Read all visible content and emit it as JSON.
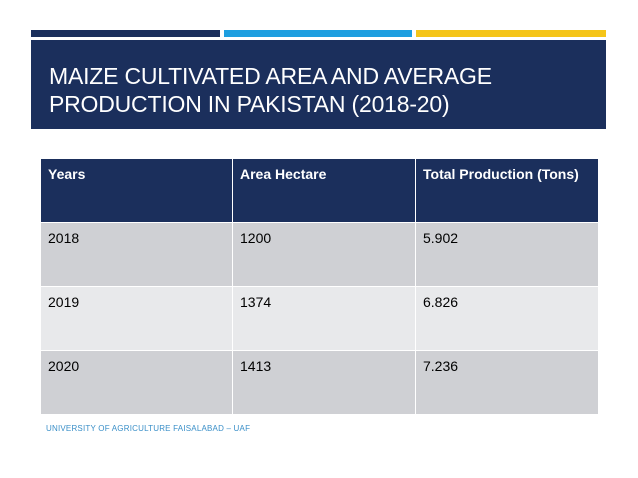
{
  "slide": {
    "title": "MAIZE CULTIVATED AREA AND AVERAGE PRODUCTION IN PAKISTAN (2018-20)",
    "footer": "UNIVERSITY OF AGRICULTURE FAISALABAD – UAF"
  },
  "table": {
    "headers": [
      "Years",
      "Area Hectare",
      "Total Production (Tons)"
    ],
    "rows": [
      [
        "2018",
        "1200",
        "5.902"
      ],
      [
        "2019",
        "1374",
        "6.826"
      ],
      [
        "2020",
        "1413",
        "7.236"
      ]
    ]
  },
  "colors": {
    "navy": "#1b2f5c",
    "blue": "#1e9fe0",
    "yellow": "#f5c518",
    "row_dark": "#cfd0d4",
    "row_light": "#e8e9eb"
  }
}
